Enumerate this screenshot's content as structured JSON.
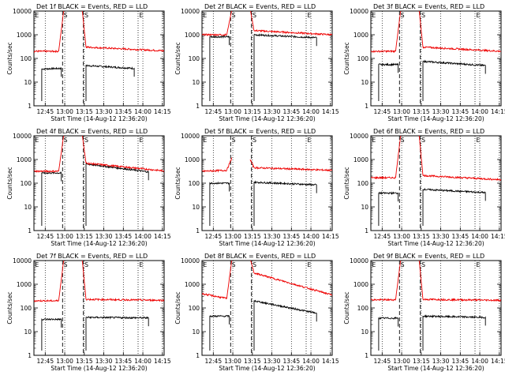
{
  "figure": {
    "xlabel": "Start Time (14-Aug-12 12:36:20)",
    "ylabel": "Counts/sec"
  },
  "colors": {
    "events": "#000000",
    "lld": "#ee0000",
    "axes": "#000000"
  },
  "axes": {
    "x_ticks": [
      "12:45",
      "13:00",
      "13:15",
      "13:30",
      "13:45",
      "14:00",
      "14:15"
    ],
    "y_ticks": [
      "1",
      "10",
      "100",
      "1000",
      "10000"
    ]
  },
  "chart_data": [
    {
      "type": "line",
      "title": "Det 1f BLACK = Events, RED = LLD",
      "xlabel": "Start Time (14-Aug-12 12:36:20)",
      "ylabel": "Counts/sec",
      "x_unit": "minutes after 12:36:20",
      "xlim": [
        0,
        100
      ],
      "ylim": [
        1,
        10000
      ],
      "yscale": "log",
      "grid": "dotted verticals",
      "markers": [
        {
          "label": "E",
          "x": 0
        },
        {
          "label": "S",
          "x": 22
        },
        {
          "label": "S",
          "x": 38
        },
        {
          "label": "E",
          "x": 80
        }
      ],
      "series": [
        {
          "name": "Events",
          "segments": [
            {
              "x": [
                6,
                21
              ],
              "y": [
                36,
                38
              ]
            },
            {
              "x": [
                40,
                77
              ],
              "y": [
                50,
                38
              ]
            }
          ]
        },
        {
          "name": "LLD",
          "segments": [
            {
              "x": [
                0,
                19
              ],
              "y": [
                200,
                200
              ]
            },
            {
              "x": [
                19,
                23
              ],
              "y": [
                200,
                12000
              ]
            },
            {
              "x": [
                37,
                40
              ],
              "y": [
                12000,
                300
              ]
            },
            {
              "x": [
                40,
                100
              ],
              "y": [
                300,
                210
              ]
            }
          ]
        }
      ]
    },
    {
      "type": "line",
      "title": "Det 2f BLACK = Events, RED = LLD",
      "xlabel": "Start Time (14-Aug-12 12:36:20)",
      "ylabel": "Counts/sec",
      "x_unit": "minutes after 12:36:20",
      "xlim": [
        0,
        100
      ],
      "ylim": [
        1,
        10000
      ],
      "yscale": "log",
      "grid": "dotted verticals",
      "markers": [
        {
          "label": "E",
          "x": 0
        },
        {
          "label": "S",
          "x": 22
        },
        {
          "label": "S",
          "x": 38
        },
        {
          "label": "E",
          "x": 80
        }
      ],
      "series": [
        {
          "name": "Events",
          "segments": [
            {
              "x": [
                6,
                21
              ],
              "y": [
                820,
                820
              ]
            },
            {
              "x": [
                40,
                88
              ],
              "y": [
                1000,
                750
              ]
            }
          ]
        },
        {
          "name": "LLD",
          "segments": [
            {
              "x": [
                0,
                19
              ],
              "y": [
                1000,
                1000
              ]
            },
            {
              "x": [
                19,
                23
              ],
              "y": [
                1000,
                12000
              ]
            },
            {
              "x": [
                37,
                40
              ],
              "y": [
                12000,
                1500
              ]
            },
            {
              "x": [
                40,
                100
              ],
              "y": [
                1500,
                1000
              ]
            }
          ]
        }
      ]
    },
    {
      "type": "line",
      "title": "Det 3f BLACK = Events, RED = LLD",
      "xlabel": "Start Time (14-Aug-12 12:36:20)",
      "ylabel": "Counts/sec",
      "x_unit": "minutes after 12:36:20",
      "xlim": [
        0,
        100
      ],
      "ylim": [
        1,
        10000
      ],
      "yscale": "log",
      "grid": "dotted verticals",
      "markers": [
        {
          "label": "E",
          "x": 0
        },
        {
          "label": "S",
          "x": 22
        },
        {
          "label": "S",
          "x": 38
        },
        {
          "label": "E",
          "x": 80
        }
      ],
      "series": [
        {
          "name": "Events",
          "segments": [
            {
              "x": [
                6,
                21
              ],
              "y": [
                55,
                55
              ]
            },
            {
              "x": [
                40,
                88
              ],
              "y": [
                75,
                50
              ]
            }
          ]
        },
        {
          "name": "LLD",
          "segments": [
            {
              "x": [
                0,
                19
              ],
              "y": [
                200,
                200
              ]
            },
            {
              "x": [
                19,
                23
              ],
              "y": [
                200,
                12000
              ]
            },
            {
              "x": [
                37,
                40
              ],
              "y": [
                12000,
                300
              ]
            },
            {
              "x": [
                40,
                100
              ],
              "y": [
                300,
                200
              ]
            }
          ]
        }
      ]
    },
    {
      "type": "line",
      "title": "Det 4f BLACK = Events, RED = LLD",
      "xlabel": "Start Time (14-Aug-12 12:36:20)",
      "ylabel": "Counts/sec",
      "x_unit": "minutes after 12:36:20",
      "xlim": [
        0,
        100
      ],
      "ylim": [
        1,
        10000
      ],
      "yscale": "log",
      "grid": "dotted verticals",
      "markers": [
        {
          "label": "E",
          "x": 0
        },
        {
          "label": "S",
          "x": 22
        },
        {
          "label": "S",
          "x": 38
        },
        {
          "label": "E",
          "x": 80
        }
      ],
      "series": [
        {
          "name": "Events",
          "segments": [
            {
              "x": [
                6,
                21
              ],
              "y": [
                270,
                270
              ]
            },
            {
              "x": [
                40,
                88
              ],
              "y": [
                650,
                300
              ]
            }
          ]
        },
        {
          "name": "LLD",
          "segments": [
            {
              "x": [
                0,
                19
              ],
              "y": [
                320,
                320
              ]
            },
            {
              "x": [
                19,
                23
              ],
              "y": [
                320,
                12000
              ]
            },
            {
              "x": [
                37,
                40
              ],
              "y": [
                12000,
                700
              ]
            },
            {
              "x": [
                40,
                100
              ],
              "y": [
                700,
                330
              ]
            }
          ]
        }
      ]
    },
    {
      "type": "line",
      "title": "Det 5f BLACK = Events, RED = LLD",
      "xlabel": "Start Time (14-Aug-12 12:36:20)",
      "ylabel": "Counts/sec",
      "x_unit": "minutes after 12:36:20",
      "xlim": [
        0,
        100
      ],
      "ylim": [
        1,
        10000
      ],
      "yscale": "log",
      "grid": "dotted verticals",
      "markers": [
        {
          "label": "E",
          "x": 0
        },
        {
          "label": "S",
          "x": 22
        },
        {
          "label": "S",
          "x": 38
        },
        {
          "label": "E",
          "x": 80
        }
      ],
      "series": [
        {
          "name": "Events",
          "segments": [
            {
              "x": [
                6,
                21
              ],
              "y": [
                100,
                100
              ]
            },
            {
              "x": [
                40,
                88
              ],
              "y": [
                110,
                85
              ]
            }
          ]
        },
        {
          "name": "LLD",
          "segments": [
            {
              "x": [
                0,
                19
              ],
              "y": [
                320,
                350
              ]
            },
            {
              "x": [
                19,
                23
              ],
              "y": [
                350,
                1200
              ]
            },
            {
              "x": [
                37,
                40
              ],
              "y": [
                1000,
                450
              ]
            },
            {
              "x": [
                40,
                100
              ],
              "y": [
                450,
                350
              ]
            }
          ]
        }
      ]
    },
    {
      "type": "line",
      "title": "Det 6f BLACK = Events, RED = LLD",
      "xlabel": "Start Time (14-Aug-12 12:36:20)",
      "ylabel": "Counts/sec",
      "x_unit": "minutes after 12:36:20",
      "xlim": [
        0,
        100
      ],
      "ylim": [
        1,
        10000
      ],
      "yscale": "log",
      "grid": "dotted verticals",
      "markers": [
        {
          "label": "E",
          "x": 0
        },
        {
          "label": "S",
          "x": 22
        },
        {
          "label": "S",
          "x": 38
        },
        {
          "label": "E",
          "x": 80
        }
      ],
      "series": [
        {
          "name": "Events",
          "segments": [
            {
              "x": [
                6,
                21
              ],
              "y": [
                38,
                38
              ]
            },
            {
              "x": [
                40,
                88
              ],
              "y": [
                55,
                40
              ]
            }
          ]
        },
        {
          "name": "LLD",
          "segments": [
            {
              "x": [
                0,
                19
              ],
              "y": [
                170,
                170
              ]
            },
            {
              "x": [
                19,
                23
              ],
              "y": [
                170,
                12000
              ]
            },
            {
              "x": [
                37,
                40
              ],
              "y": [
                12000,
                210
              ]
            },
            {
              "x": [
                40,
                100
              ],
              "y": [
                210,
                140
              ]
            }
          ]
        }
      ]
    },
    {
      "type": "line",
      "title": "Det 7f BLACK = Events, RED = LLD",
      "xlabel": "Start Time (14-Aug-12 12:36:20)",
      "ylabel": "Counts/sec",
      "x_unit": "minutes after 12:36:20",
      "xlim": [
        0,
        100
      ],
      "ylim": [
        1,
        10000
      ],
      "yscale": "log",
      "grid": "dotted verticals",
      "markers": [
        {
          "label": "E",
          "x": 0
        },
        {
          "label": "S",
          "x": 22
        },
        {
          "label": "S",
          "x": 38
        },
        {
          "label": "E",
          "x": 80
        }
      ],
      "series": [
        {
          "name": "Events",
          "segments": [
            {
              "x": [
                6,
                21
              ],
              "y": [
                33,
                33
              ]
            },
            {
              "x": [
                40,
                88
              ],
              "y": [
                40,
                38
              ]
            }
          ]
        },
        {
          "name": "LLD",
          "segments": [
            {
              "x": [
                0,
                19
              ],
              "y": [
                200,
                200
              ]
            },
            {
              "x": [
                19,
                23
              ],
              "y": [
                200,
                12000
              ]
            },
            {
              "x": [
                37,
                40
              ],
              "y": [
                12000,
                230
              ]
            },
            {
              "x": [
                40,
                100
              ],
              "y": [
                230,
                210
              ]
            }
          ]
        }
      ]
    },
    {
      "type": "line",
      "title": "Det 8f BLACK = Events, RED = LLD",
      "xlabel": "Start Time (14-Aug-12 12:36:20)",
      "ylabel": "Counts/sec",
      "x_unit": "minutes after 12:36:20",
      "xlim": [
        0,
        100
      ],
      "ylim": [
        1,
        10000
      ],
      "yscale": "log",
      "grid": "dotted verticals",
      "markers": [
        {
          "label": "E",
          "x": 0
        },
        {
          "label": "S",
          "x": 22
        },
        {
          "label": "S",
          "x": 38
        },
        {
          "label": "E",
          "x": 80
        }
      ],
      "series": [
        {
          "name": "Events",
          "segments": [
            {
              "x": [
                6,
                21
              ],
              "y": [
                45,
                45
              ]
            },
            {
              "x": [
                40,
                88
              ],
              "y": [
                200,
                60
              ]
            }
          ]
        },
        {
          "name": "LLD",
          "segments": [
            {
              "x": [
                0,
                19
              ],
              "y": [
                400,
                250
              ]
            },
            {
              "x": [
                19,
                23
              ],
              "y": [
                250,
                12000
              ]
            },
            {
              "x": [
                37,
                40
              ],
              "y": [
                12000,
                3000
              ]
            },
            {
              "x": [
                40,
                100
              ],
              "y": [
                3000,
                350
              ]
            }
          ]
        }
      ]
    },
    {
      "type": "line",
      "title": "Det 9f BLACK = Events, RED = LLD",
      "xlabel": "Start Time (14-Aug-12 12:36:20)",
      "ylabel": "Counts/sec",
      "x_unit": "minutes after 12:36:20",
      "xlim": [
        0,
        100
      ],
      "ylim": [
        1,
        10000
      ],
      "yscale": "log",
      "grid": "dotted verticals",
      "markers": [
        {
          "label": "E",
          "x": 0
        },
        {
          "label": "S",
          "x": 22
        },
        {
          "label": "S",
          "x": 38
        },
        {
          "label": "E",
          "x": 80
        }
      ],
      "series": [
        {
          "name": "Events",
          "segments": [
            {
              "x": [
                6,
                21
              ],
              "y": [
                37,
                37
              ]
            },
            {
              "x": [
                40,
                88
              ],
              "y": [
                45,
                40
              ]
            }
          ]
        },
        {
          "name": "LLD",
          "segments": [
            {
              "x": [
                0,
                19
              ],
              "y": [
                220,
                220
              ]
            },
            {
              "x": [
                19,
                23
              ],
              "y": [
                220,
                12000
              ]
            },
            {
              "x": [
                37,
                40
              ],
              "y": [
                12000,
                230
              ]
            },
            {
              "x": [
                40,
                100
              ],
              "y": [
                230,
                210
              ]
            }
          ]
        }
      ]
    }
  ]
}
